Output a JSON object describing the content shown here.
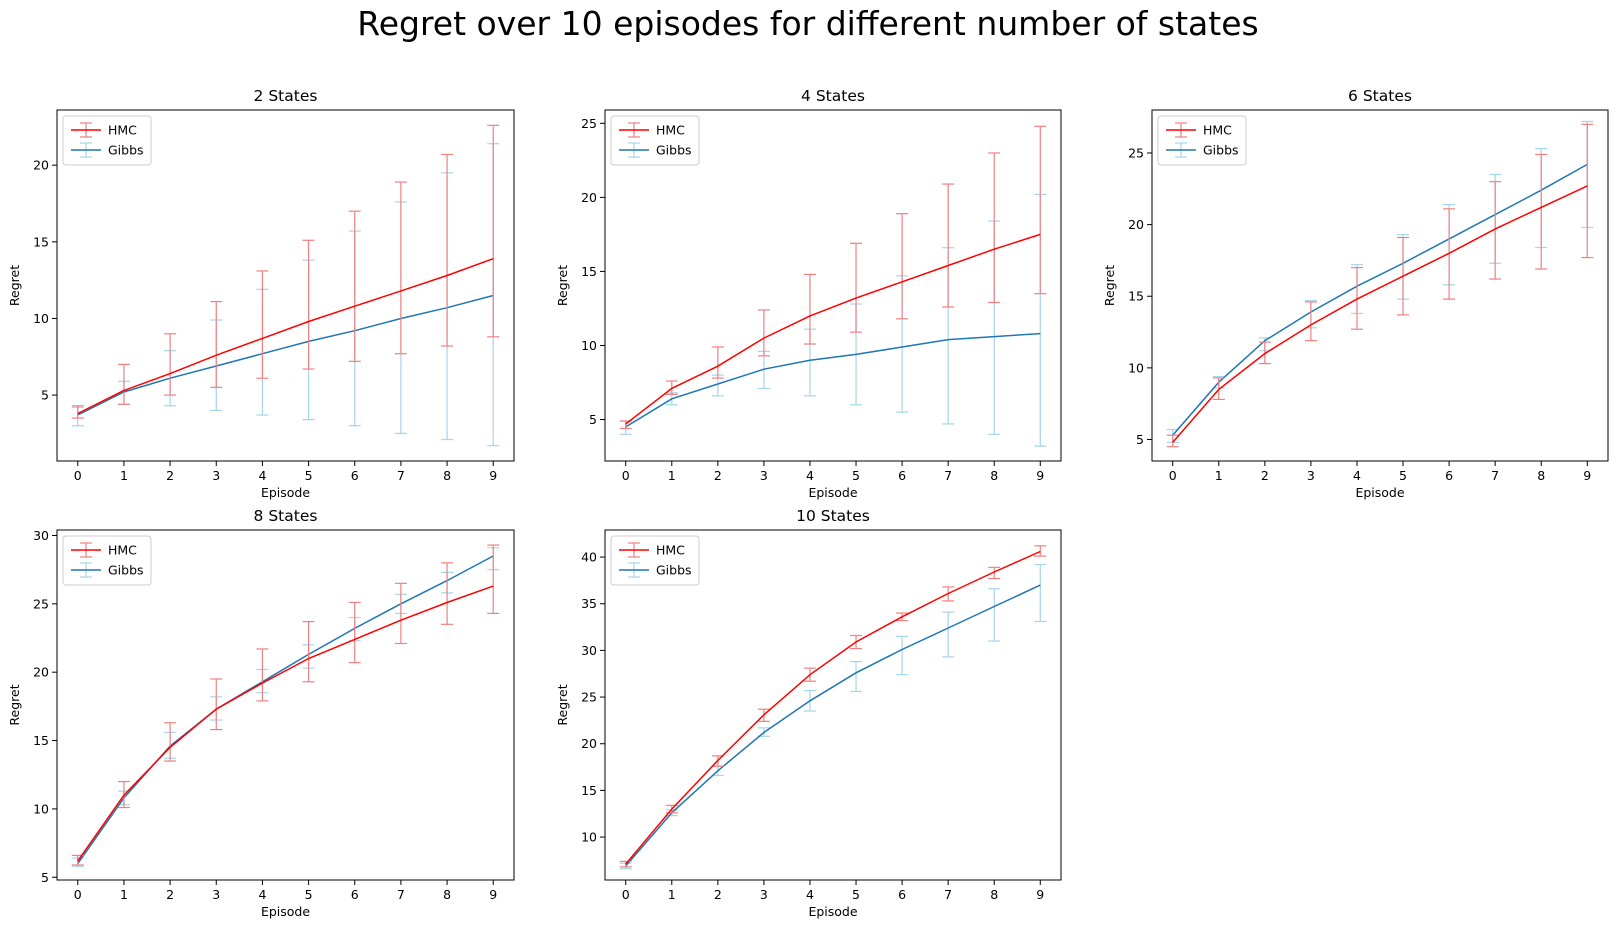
{
  "figure": {
    "title": "Regret over 10 episodes for different number of states",
    "colors": {
      "hmc_line": "#ff0000",
      "hmc_err": "#f08080",
      "gibbs_line": "#1f77b4",
      "gibbs_err": "#a6d4ea"
    }
  },
  "chart_data": [
    {
      "type": "line",
      "title": "2 States",
      "xlabel": "Episode",
      "ylabel": "Regret",
      "x": [
        0,
        1,
        2,
        3,
        4,
        5,
        6,
        7,
        8,
        9
      ],
      "xticks": [
        0,
        1,
        2,
        3,
        4,
        5,
        6,
        7,
        8,
        9
      ],
      "yticks": [
        5,
        10,
        15,
        20
      ],
      "ylim": [
        0.7,
        23.6
      ],
      "legend": "upper-left",
      "series": [
        {
          "name": "HMC",
          "values": [
            3.8,
            5.3,
            6.4,
            7.6,
            8.7,
            9.8,
            10.8,
            11.8,
            12.8,
            13.9
          ],
          "lower": [
            3.5,
            4.4,
            5.0,
            5.5,
            6.1,
            6.7,
            7.2,
            7.7,
            8.2,
            8.8
          ],
          "upper": [
            4.3,
            7.0,
            9.0,
            11.1,
            13.1,
            15.1,
            17.0,
            18.9,
            20.7,
            22.6
          ]
        },
        {
          "name": "Gibbs",
          "values": [
            3.7,
            5.2,
            6.1,
            6.9,
            7.7,
            8.5,
            9.2,
            10.0,
            10.7,
            11.5
          ],
          "lower": [
            3.0,
            4.4,
            4.3,
            4.0,
            3.7,
            3.4,
            3.0,
            2.5,
            2.1,
            1.7
          ],
          "upper": [
            4.2,
            5.9,
            7.9,
            9.9,
            11.9,
            13.8,
            15.7,
            17.6,
            19.5,
            21.4
          ]
        }
      ]
    },
    {
      "type": "line",
      "title": "4 States",
      "xlabel": "Episode",
      "ylabel": "Regret",
      "x": [
        0,
        1,
        2,
        3,
        4,
        5,
        6,
        7,
        8,
        9
      ],
      "xticks": [
        0,
        1,
        2,
        3,
        4,
        5,
        6,
        7,
        8,
        9
      ],
      "yticks": [
        5,
        10,
        15,
        20,
        25
      ],
      "ylim": [
        2.2,
        25.9
      ],
      "legend": "upper-left",
      "series": [
        {
          "name": "HMC",
          "values": [
            4.7,
            7.1,
            8.6,
            10.5,
            12.0,
            13.2,
            14.3,
            15.4,
            16.5,
            17.5
          ],
          "lower": [
            4.4,
            6.7,
            7.8,
            9.3,
            10.1,
            10.9,
            11.8,
            12.6,
            12.9,
            13.5
          ],
          "upper": [
            4.9,
            7.6,
            9.9,
            12.4,
            14.8,
            16.9,
            18.9,
            20.9,
            23.0,
            24.8
          ]
        },
        {
          "name": "Gibbs",
          "values": [
            4.5,
            6.4,
            7.4,
            8.4,
            9.0,
            9.4,
            9.9,
            10.4,
            10.6,
            10.8
          ],
          "lower": [
            4.0,
            6.0,
            6.6,
            7.1,
            6.6,
            6.0,
            5.5,
            4.7,
            4.0,
            3.2
          ],
          "upper": [
            4.9,
            6.8,
            8.0,
            9.6,
            11.1,
            12.8,
            14.7,
            16.6,
            18.4,
            20.2
          ]
        }
      ]
    },
    {
      "type": "line",
      "title": "6 States",
      "xlabel": "Episode",
      "ylabel": "Regret",
      "x": [
        0,
        1,
        2,
        3,
        4,
        5,
        6,
        7,
        8,
        9
      ],
      "xticks": [
        0,
        1,
        2,
        3,
        4,
        5,
        6,
        7,
        8,
        9
      ],
      "yticks": [
        5,
        10,
        15,
        20,
        25
      ],
      "ylim": [
        3.5,
        28.0
      ],
      "legend": "upper-left",
      "series": [
        {
          "name": "HMC",
          "values": [
            4.8,
            8.5,
            11.0,
            13.0,
            14.8,
            16.4,
            18.0,
            19.7,
            21.2,
            22.7
          ],
          "lower": [
            4.5,
            7.8,
            10.3,
            11.9,
            12.7,
            13.7,
            14.8,
            16.2,
            16.9,
            17.7
          ],
          "upper": [
            5.3,
            9.3,
            11.8,
            14.6,
            17.0,
            19.1,
            21.1,
            23.0,
            24.9,
            27.0
          ]
        },
        {
          "name": "Gibbs",
          "values": [
            5.3,
            9.0,
            11.9,
            13.9,
            15.7,
            17.3,
            19.0,
            20.7,
            22.4,
            24.2
          ],
          "lower": [
            4.8,
            8.6,
            11.2,
            12.8,
            13.8,
            14.8,
            15.8,
            17.3,
            18.4,
            19.8
          ],
          "upper": [
            5.7,
            9.4,
            12.1,
            14.7,
            17.2,
            19.3,
            21.4,
            23.5,
            25.3,
            27.2
          ]
        }
      ]
    },
    {
      "type": "line",
      "title": "8 States",
      "xlabel": "Episode",
      "ylabel": "Regret",
      "x": [
        0,
        1,
        2,
        3,
        4,
        5,
        6,
        7,
        8,
        9
      ],
      "xticks": [
        0,
        1,
        2,
        3,
        4,
        5,
        6,
        7,
        8,
        9
      ],
      "yticks": [
        5,
        10,
        15,
        20,
        25,
        30
      ],
      "ylim": [
        4.8,
        30.4
      ],
      "legend": "upper-left",
      "series": [
        {
          "name": "HMC",
          "values": [
            6.2,
            11.0,
            14.5,
            17.3,
            19.2,
            21.0,
            22.4,
            23.8,
            25.1,
            26.3
          ],
          "lower": [
            5.9,
            10.1,
            13.5,
            15.8,
            17.9,
            19.3,
            20.7,
            22.1,
            23.5,
            24.3
          ],
          "upper": [
            6.6,
            12.0,
            16.3,
            19.5,
            21.7,
            23.7,
            25.1,
            26.5,
            28.0,
            29.3
          ]
        },
        {
          "name": "Gibbs",
          "values": [
            6.0,
            10.8,
            14.6,
            17.3,
            19.3,
            21.3,
            23.2,
            25.0,
            26.7,
            28.5
          ],
          "lower": [
            5.8,
            10.3,
            13.7,
            16.5,
            18.5,
            20.3,
            22.3,
            24.3,
            25.8,
            27.5
          ],
          "upper": [
            6.4,
            11.3,
            15.6,
            18.2,
            20.2,
            22.0,
            24.0,
            25.7,
            27.3,
            29.1
          ]
        }
      ]
    },
    {
      "type": "line",
      "title": "10 States",
      "xlabel": "Episode",
      "ylabel": "Regret",
      "x": [
        0,
        1,
        2,
        3,
        4,
        5,
        6,
        7,
        8,
        9
      ],
      "xticks": [
        0,
        1,
        2,
        3,
        4,
        5,
        6,
        7,
        8,
        9
      ],
      "yticks": [
        10,
        15,
        20,
        25,
        30,
        35,
        40
      ],
      "ylim": [
        5.4,
        42.9
      ],
      "legend": "upper-left",
      "series": [
        {
          "name": "HMC",
          "values": [
            7.1,
            13.0,
            18.2,
            23.1,
            27.4,
            30.9,
            33.6,
            36.1,
            38.4,
            40.6
          ],
          "lower": [
            6.8,
            12.6,
            17.6,
            22.4,
            26.7,
            30.2,
            33.2,
            35.3,
            37.7,
            40.1
          ],
          "upper": [
            7.4,
            13.4,
            18.7,
            23.7,
            28.1,
            31.6,
            34.0,
            36.8,
            38.9,
            41.2
          ]
        },
        {
          "name": "Gibbs",
          "values": [
            6.9,
            12.6,
            17.1,
            21.2,
            24.6,
            27.6,
            30.1,
            32.4,
            34.7,
            37.0
          ],
          "lower": [
            6.6,
            12.3,
            16.6,
            20.8,
            23.5,
            25.6,
            27.4,
            29.3,
            31.0,
            33.1
          ],
          "upper": [
            7.2,
            12.9,
            17.6,
            21.7,
            25.7,
            28.8,
            31.5,
            34.1,
            36.6,
            39.2
          ]
        }
      ]
    }
  ]
}
